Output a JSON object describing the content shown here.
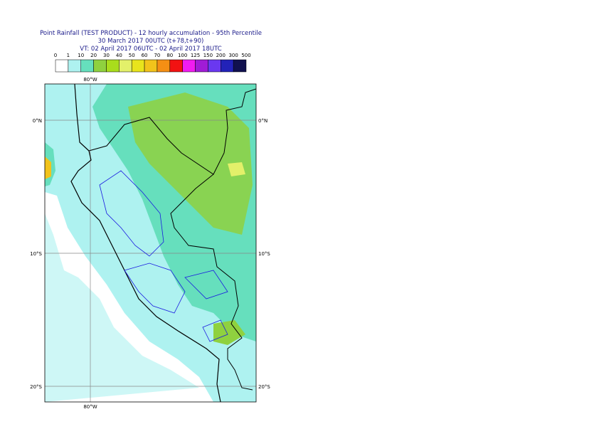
{
  "header": {
    "lines": [
      "Point Rainfall (TEST PRODUCT) - 12 hourly accumulation - 95th Percentile",
      "30 March 2017 00UTC (t+78,t+90)",
      "VT: 02 April 2017 06UTC - 02 April 2017 18UTC"
    ]
  },
  "legend": {
    "levels": [
      0,
      1,
      10,
      20,
      30,
      40,
      50,
      60,
      70,
      80,
      100,
      125,
      150,
      200,
      300,
      500
    ],
    "colors": [
      "#ffffff",
      "#aef2f0",
      "#66dfbd",
      "#8fd13f",
      "#a9dd1c",
      "#e3f06a",
      "#e8e41c",
      "#f2c31b",
      "#f58f14",
      "#f21212",
      "#f01cf0",
      "#a01cd6",
      "#6a38f0",
      "#2222b8",
      "#11114f"
    ]
  },
  "map": {
    "lon_labels": [
      "80°W"
    ],
    "lat_labels": [
      "0°N",
      "10°S",
      "20°S"
    ]
  }
}
